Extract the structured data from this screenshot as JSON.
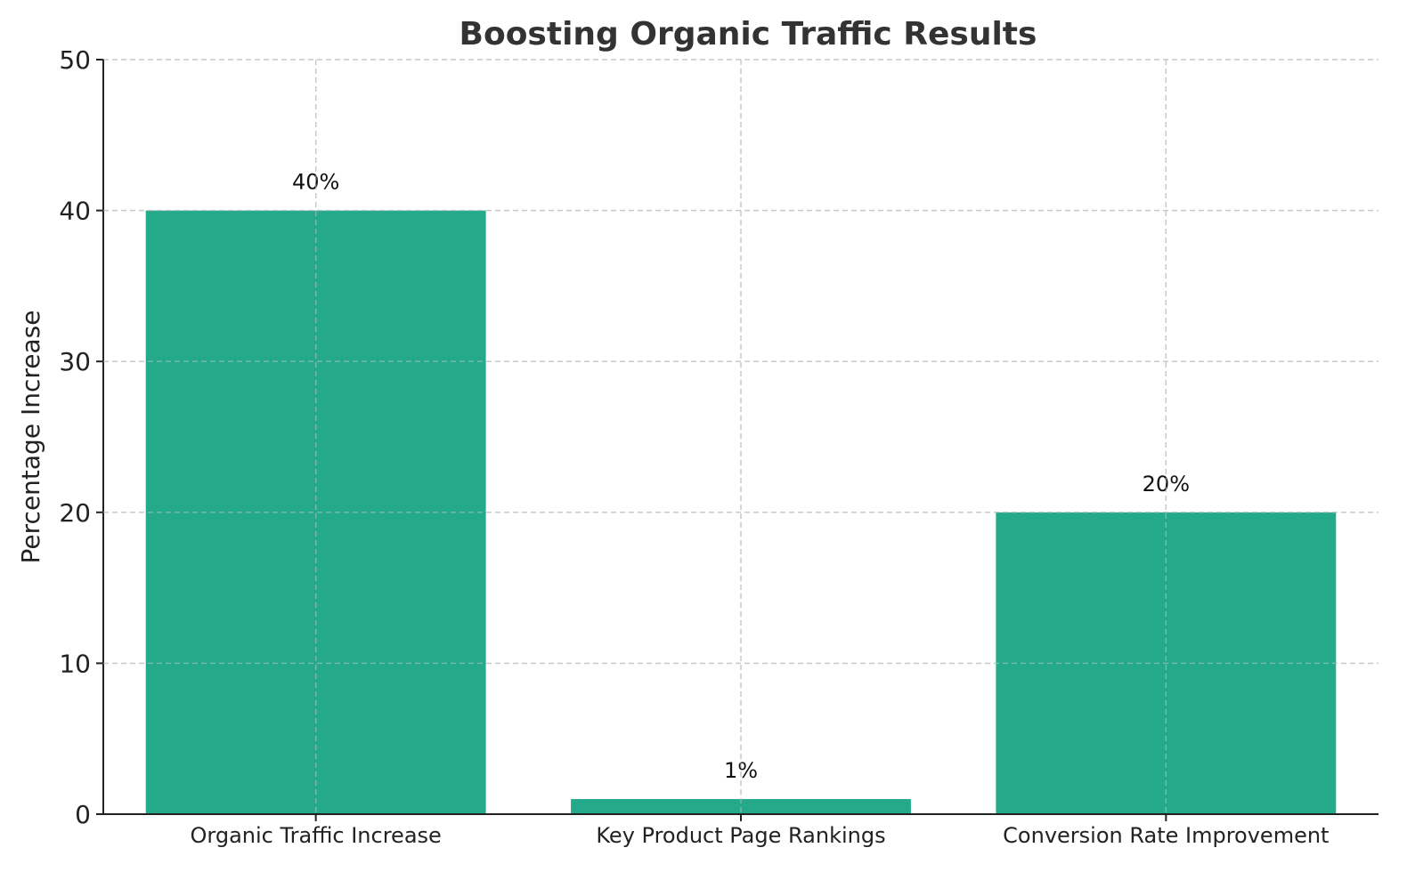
{
  "chart_data": {
    "type": "bar",
    "title": "Boosting Organic Traffic Results",
    "xlabel": "",
    "ylabel": "Percentage Increase",
    "categories": [
      "Organic Traffic Increase",
      "Key Product Page Rankings",
      "Conversion Rate Improvement"
    ],
    "values": [
      40,
      1,
      20
    ],
    "data_labels": [
      "40%",
      "1%",
      "20%"
    ],
    "ylim": [
      0,
      50
    ],
    "yticks": [
      0,
      10,
      20,
      30,
      40,
      50
    ],
    "grid": true,
    "bar_color": "#24a98a",
    "axis_color": "#222222",
    "grid_color": "#c8c8c8"
  }
}
